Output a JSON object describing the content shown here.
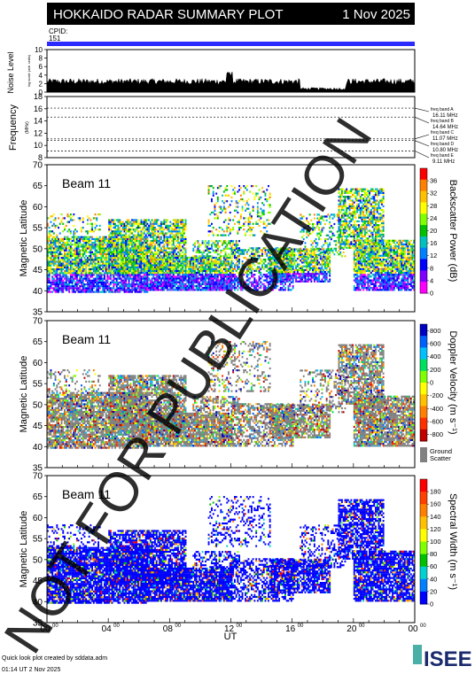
{
  "header": {
    "title": "HOKKAIDO RADAR SUMMARY PLOT",
    "date": "1 Nov 2025"
  },
  "cpid": {
    "label": "CPID:",
    "value": "151"
  },
  "noise_panel": {
    "ylabel": "Noise Level",
    "ylabel_sub": "log scale (arb. units)",
    "ticks": [
      "0",
      "2",
      "4",
      "6",
      "8",
      "10"
    ],
    "ylim": [
      0,
      10
    ]
  },
  "frequency_panel": {
    "ylabel": "Frequency",
    "ylabel_sub": "(MHz)",
    "ticks": [
      "8",
      "10",
      "12",
      "14",
      "16",
      "18"
    ],
    "ylim": [
      8,
      18
    ],
    "bands": [
      {
        "name": "freq band A",
        "freq": "16.11 MHz"
      },
      {
        "name": "freq band B",
        "freq": "14.64 MHz"
      },
      {
        "name": "freq band C",
        "freq": "11.07 MHz"
      },
      {
        "name": "freq band D",
        "freq": "10.80 MHz"
      },
      {
        "name": "freq band E",
        "freq": "9.11 MHz"
      }
    ]
  },
  "panels": [
    {
      "beam": "Beam 11",
      "ylabel": "Magnetic Latitude",
      "yticks": [
        "35",
        "40",
        "45",
        "50",
        "55",
        "60",
        "65",
        "70"
      ],
      "cbar_label": "Backscatter Power (dB)",
      "cbar_ticks": [
        "0",
        "4",
        "8",
        "12",
        "16",
        "20",
        "24",
        "28",
        "32",
        "36"
      ]
    },
    {
      "beam": "Beam 11",
      "ylabel": "Magnetic Latitude",
      "yticks": [
        "35",
        "40",
        "45",
        "50",
        "55",
        "60",
        "65",
        "70"
      ],
      "cbar_label": "Doppler Velocity (m s⁻¹)",
      "cbar_ticks": [
        "800",
        "600",
        "400",
        "200",
        "0",
        "-200",
        "-400",
        "-600",
        "-800"
      ],
      "ground_label_1": "Ground",
      "ground_label_2": "Scatter"
    },
    {
      "beam": "Beam 11",
      "ylabel": "Magnetic Latitude",
      "yticks": [
        "35",
        "40",
        "45",
        "50",
        "55",
        "60",
        "65",
        "70"
      ],
      "cbar_label": "Spectral Width (m s⁻¹)",
      "cbar_ticks": [
        "0",
        "20",
        "40",
        "60",
        "80",
        "100",
        "120",
        "140",
        "160",
        "180"
      ]
    }
  ],
  "xaxis": {
    "label": "UT",
    "ticks": [
      "00",
      "04",
      "08",
      "12",
      "16",
      "20",
      "00"
    ],
    "tick_sup": "00"
  },
  "watermark": "NOT FOR PUBLICATION",
  "footer": {
    "line1": "Quick look plot created by sddata.adm",
    "line2": "01:14 UT  2 Nov 2025",
    "logo": "ISEE"
  },
  "colors": {
    "cpid_bar": "#2b2bff",
    "power_scale": [
      "#ff00ff",
      "#8000ff",
      "#0000ff",
      "#0080ff",
      "#00c0c0",
      "#00c000",
      "#80ff00",
      "#ffff00",
      "#ffc000",
      "#ff8000",
      "#ff0000"
    ],
    "ground": "#808080"
  },
  "chart_data": [
    {
      "type": "area",
      "title": "Noise Level",
      "x_range_ut_hours": [
        0,
        24
      ],
      "ylim": [
        0,
        10
      ],
      "description_values": "noise level roughly 1–3, with a spike near 12 UT and a minimum near 17–19 UT"
    },
    {
      "type": "line",
      "title": "Frequency",
      "ylim": [
        8,
        18
      ],
      "series": [
        {
          "name": "freq band A",
          "value_mhz": 16.11
        },
        {
          "name": "freq band B",
          "value_mhz": 14.64
        },
        {
          "name": "freq band C",
          "value_mhz": 11.07
        },
        {
          "name": "freq band D",
          "value_mhz": 10.8
        },
        {
          "name": "freq band E",
          "value_mhz": 9.11
        }
      ]
    },
    {
      "type": "heatmap",
      "title": "Backscatter Power (dB)",
      "x_range_ut_hours": [
        0,
        24
      ],
      "ylim": [
        35,
        70
      ],
      "zlim": [
        0,
        40
      ]
    },
    {
      "type": "heatmap",
      "title": "Doppler Velocity (m s⁻¹)",
      "x_range_ut_hours": [
        0,
        24
      ],
      "ylim": [
        35,
        70
      ],
      "zlim": [
        -1000,
        1000
      ]
    },
    {
      "type": "heatmap",
      "title": "Spectral Width (m s⁻¹)",
      "x_range_ut_hours": [
        0,
        24
      ],
      "ylim": [
        35,
        70
      ],
      "zlim": [
        0,
        200
      ]
    }
  ]
}
